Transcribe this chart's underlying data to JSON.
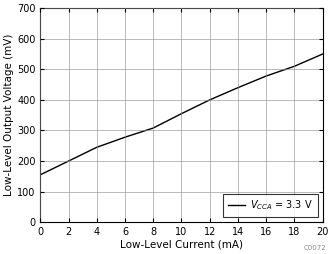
{
  "title": "",
  "xlabel": "Low-Level Current (mA)",
  "ylabel": "Low-Level Output Voltage (mV)",
  "xlim": [
    0,
    20
  ],
  "ylim": [
    0,
    700
  ],
  "xticks": [
    0,
    2,
    4,
    6,
    8,
    10,
    12,
    14,
    16,
    18,
    20
  ],
  "yticks": [
    0,
    100,
    200,
    300,
    400,
    500,
    600,
    700
  ],
  "x_data": [
    0,
    2,
    4,
    6,
    8,
    10,
    12,
    14,
    16,
    18,
    20
  ],
  "y_data": [
    155,
    200,
    245,
    278,
    308,
    355,
    400,
    440,
    478,
    510,
    550
  ],
  "line_color": "#000000",
  "legend_label_math": "$V_{CCA}$ = 3.3 V",
  "legend_loc": "lower right",
  "grid_color": "#888888",
  "background_color": "#ffffff",
  "label_fontsize": 7.5,
  "tick_fontsize": 7,
  "legend_fontsize": 7,
  "watermark": "C0072",
  "line_width": 1.0
}
